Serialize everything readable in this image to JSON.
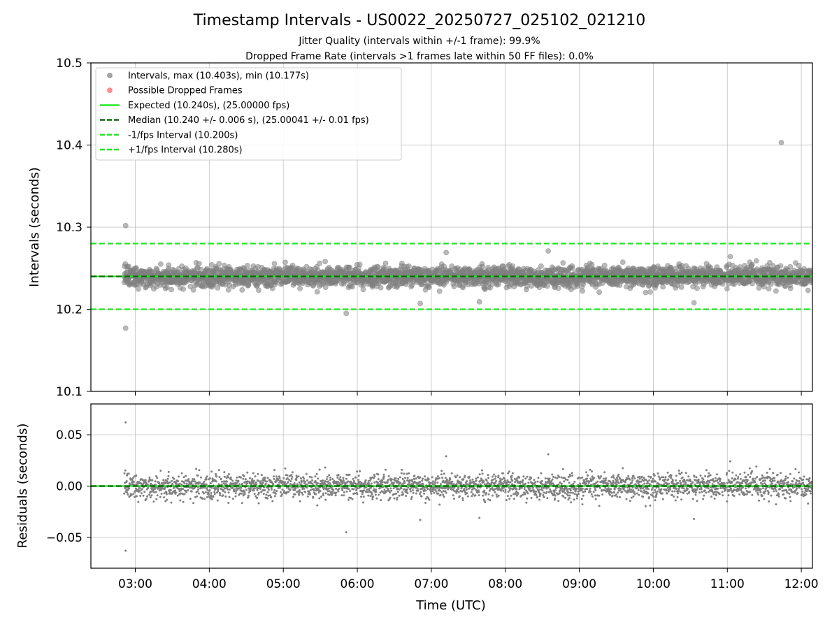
{
  "title": "Timestamp Intervals - US0022_20250727_025102_021210",
  "subtitle_1": "Jitter Quality (intervals within +/-1 frame): 99.9%",
  "subtitle_2": "Dropped Frame Rate (intervals >1 frames late within 50 FF files): 0.0%",
  "colors": {
    "points": "#808080",
    "dropped": "#ff6666",
    "expected": "#1ee81e",
    "median": "#006400",
    "bound": "#1ee81e",
    "grid": "#b0b0b0"
  },
  "chart_data": [
    {
      "type": "scatter",
      "panel": "top",
      "ylabel": "Intervals (seconds)",
      "ylim": [
        10.1,
        10.5
      ],
      "yticks": [
        10.1,
        10.2,
        10.3,
        10.4,
        10.5
      ],
      "ytick_labels": [
        "10.1",
        "10.2",
        "10.3",
        "10.4",
        "10.5"
      ],
      "xlim_hours": [
        2.4,
        12.15
      ],
      "grid": true,
      "legend_position": "upper-left",
      "legend": [
        {
          "label": "Intervals, max (10.403s), min (10.177s)",
          "kind": "marker",
          "color": "#808080"
        },
        {
          "label": "Possible Dropped Frames",
          "kind": "marker",
          "color": "#ff6666"
        },
        {
          "label": "Expected (10.240s), (25.00000 fps)",
          "kind": "solid",
          "color": "#1ee81e"
        },
        {
          "label": "Median (10.240 +/- 0.006 s), (25.00041 +/- 0.01 fps)",
          "kind": "dashed",
          "color": "#006400"
        },
        {
          "label": "-1/fps Interval (10.200s)",
          "kind": "dashed",
          "color": "#1ee81e"
        },
        {
          "label": "+1/fps Interval (10.280s)",
          "kind": "dashed",
          "color": "#1ee81e"
        }
      ],
      "hlines": [
        {
          "name": "expected",
          "y": 10.24,
          "style": "solid",
          "color": "#1ee81e"
        },
        {
          "name": "median",
          "y": 10.24,
          "style": "dashed",
          "color": "#006400"
        },
        {
          "name": "minus-1-fps",
          "y": 10.2,
          "style": "dashed",
          "color": "#1ee81e"
        },
        {
          "name": "plus-1-fps",
          "y": 10.28,
          "style": "dashed",
          "color": "#1ee81e"
        }
      ],
      "series": {
        "median": 10.24,
        "start_hour": 2.85,
        "end_hour": 12.2,
        "count": 3000,
        "spread_s": 0.006,
        "outliers": [
          {
            "x_hour": 2.87,
            "y": 10.302
          },
          {
            "x_hour": 2.87,
            "y": 10.177
          },
          {
            "x_hour": 5.85,
            "y": 10.195
          },
          {
            "x_hour": 11.73,
            "y": 10.403
          },
          {
            "x_hour": 6.85,
            "y": 10.207
          },
          {
            "x_hour": 7.65,
            "y": 10.209
          },
          {
            "x_hour": 8.58,
            "y": 10.271
          },
          {
            "x_hour": 10.55,
            "y": 10.208
          },
          {
            "x_hour": 7.2,
            "y": 10.269
          }
        ]
      }
    },
    {
      "type": "scatter",
      "panel": "bottom",
      "xlabel": "Time (UTC)",
      "ylabel": "Residuals (seconds)",
      "ylim": [
        -0.08,
        0.08
      ],
      "yticks": [
        0.05,
        0.0,
        -0.05
      ],
      "ytick_labels": [
        "0.05",
        "0.00",
        "−0.05"
      ],
      "xlim_hours": [
        2.4,
        12.15
      ],
      "xticks_hours": [
        3,
        4,
        5,
        6,
        7,
        8,
        9,
        10,
        11,
        12
      ],
      "xtick_labels": [
        "03:00",
        "04:00",
        "05:00",
        "06:00",
        "07:00",
        "08:00",
        "09:00",
        "10:00",
        "11:00",
        "12:00"
      ],
      "grid": true,
      "hlines": [
        {
          "name": "zero-expected",
          "y": 0.0,
          "style": "solid",
          "color": "#1ee81e"
        },
        {
          "name": "zero-median",
          "y": 0.0,
          "style": "dashed",
          "color": "#006400"
        }
      ]
    }
  ]
}
